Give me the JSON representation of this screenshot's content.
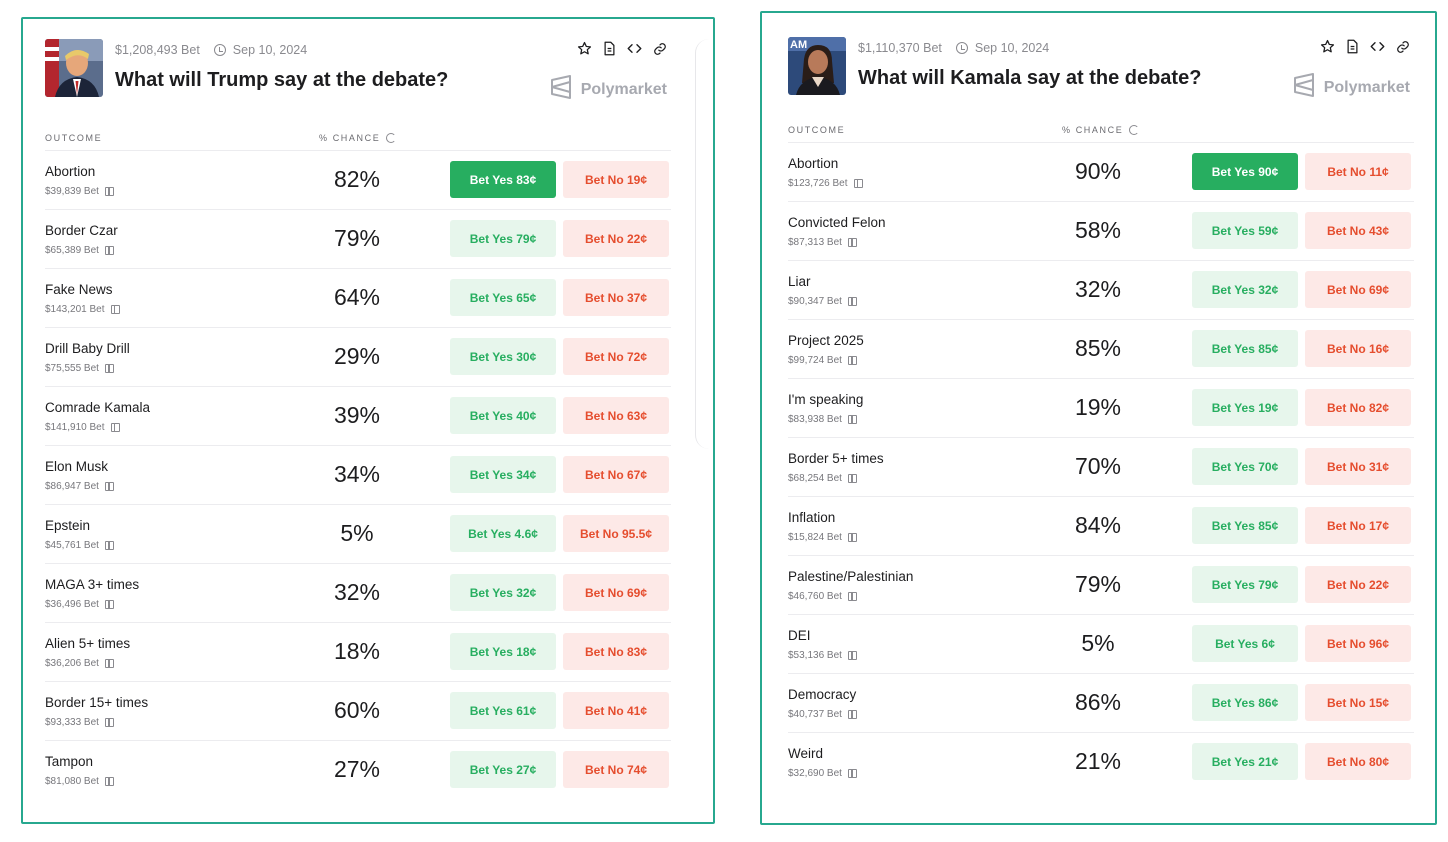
{
  "brand_name": "Polymarket",
  "columns": {
    "outcome": "OUTCOME",
    "chance": "% CHANCE"
  },
  "colors": {
    "accent_border": "#27a88f",
    "yes": "#27ae60",
    "yes_bg": "#e7f6ec",
    "no": "#e54d2e",
    "no_bg": "#fde9e7"
  },
  "icons": [
    "star-icon",
    "document-icon",
    "embed-code-icon",
    "link-icon",
    "clock-icon",
    "refresh-icon",
    "gift-icon",
    "polymarket-logo-icon"
  ],
  "cards": [
    {
      "volume": "$1,208,493 Bet",
      "date": "Sep 10, 2024",
      "title": "What will Trump say at the debate?",
      "rows": [
        {
          "name": "Abortion",
          "bet": "$39,839 Bet",
          "pct": "82%",
          "yes": "Bet Yes 83¢",
          "no": "Bet No 19¢",
          "active": true
        },
        {
          "name": "Border Czar",
          "bet": "$65,389 Bet",
          "pct": "79%",
          "yes": "Bet Yes 79¢",
          "no": "Bet No 22¢"
        },
        {
          "name": "Fake News",
          "bet": "$143,201 Bet",
          "pct": "64%",
          "yes": "Bet Yes 65¢",
          "no": "Bet No 37¢"
        },
        {
          "name": "Drill Baby Drill",
          "bet": "$75,555 Bet",
          "pct": "29%",
          "yes": "Bet Yes 30¢",
          "no": "Bet No 72¢"
        },
        {
          "name": "Comrade Kamala",
          "bet": "$141,910 Bet",
          "pct": "39%",
          "yes": "Bet Yes 40¢",
          "no": "Bet No 63¢"
        },
        {
          "name": "Elon Musk",
          "bet": "$86,947 Bet",
          "pct": "34%",
          "yes": "Bet Yes 34¢",
          "no": "Bet No 67¢"
        },
        {
          "name": "Epstein",
          "bet": "$45,761 Bet",
          "pct": "5%",
          "yes": "Bet Yes 4.6¢",
          "no": "Bet No 95.5¢"
        },
        {
          "name": "MAGA 3+ times",
          "bet": "$36,496 Bet",
          "pct": "32%",
          "yes": "Bet Yes 32¢",
          "no": "Bet No 69¢"
        },
        {
          "name": "Alien 5+ times",
          "bet": "$36,206 Bet",
          "pct": "18%",
          "yes": "Bet Yes 18¢",
          "no": "Bet No 83¢"
        },
        {
          "name": "Border 15+ times",
          "bet": "$93,333 Bet",
          "pct": "60%",
          "yes": "Bet Yes 61¢",
          "no": "Bet No 41¢"
        },
        {
          "name": "Tampon",
          "bet": "$81,080 Bet",
          "pct": "27%",
          "yes": "Bet Yes 27¢",
          "no": "Bet No 74¢"
        }
      ]
    },
    {
      "volume": "$1,110,370 Bet",
      "date": "Sep 10, 2024",
      "title": "What will Kamala say at the debate?",
      "rows": [
        {
          "name": "Abortion",
          "bet": "$123,726 Bet",
          "pct": "90%",
          "yes": "Bet Yes 90¢",
          "no": "Bet No 11¢",
          "active": true
        },
        {
          "name": "Convicted Felon",
          "bet": "$87,313 Bet",
          "pct": "58%",
          "yes": "Bet Yes 59¢",
          "no": "Bet No 43¢"
        },
        {
          "name": "Liar",
          "bet": "$90,347 Bet",
          "pct": "32%",
          "yes": "Bet Yes 32¢",
          "no": "Bet No 69¢"
        },
        {
          "name": "Project 2025",
          "bet": "$99,724 Bet",
          "pct": "85%",
          "yes": "Bet Yes 85¢",
          "no": "Bet No 16¢"
        },
        {
          "name": "I'm speaking",
          "bet": "$83,938 Bet",
          "pct": "19%",
          "yes": "Bet Yes 19¢",
          "no": "Bet No 82¢"
        },
        {
          "name": "Border 5+ times",
          "bet": "$68,254 Bet",
          "pct": "70%",
          "yes": "Bet Yes 70¢",
          "no": "Bet No 31¢"
        },
        {
          "name": "Inflation",
          "bet": "$15,824 Bet",
          "pct": "84%",
          "yes": "Bet Yes 85¢",
          "no": "Bet No 17¢"
        },
        {
          "name": "Palestine/Palestinian",
          "bet": "$46,760 Bet",
          "pct": "79%",
          "yes": "Bet Yes 79¢",
          "no": "Bet No 22¢"
        },
        {
          "name": "DEI",
          "bet": "$53,136 Bet",
          "pct": "5%",
          "yes": "Bet Yes 6¢",
          "no": "Bet No 96¢"
        },
        {
          "name": "Democracy",
          "bet": "$40,737 Bet",
          "pct": "86%",
          "yes": "Bet Yes 86¢",
          "no": "Bet No 15¢"
        },
        {
          "name": "Weird",
          "bet": "$32,690 Bet",
          "pct": "21%",
          "yes": "Bet Yes 21¢",
          "no": "Bet No 80¢"
        }
      ]
    }
  ]
}
